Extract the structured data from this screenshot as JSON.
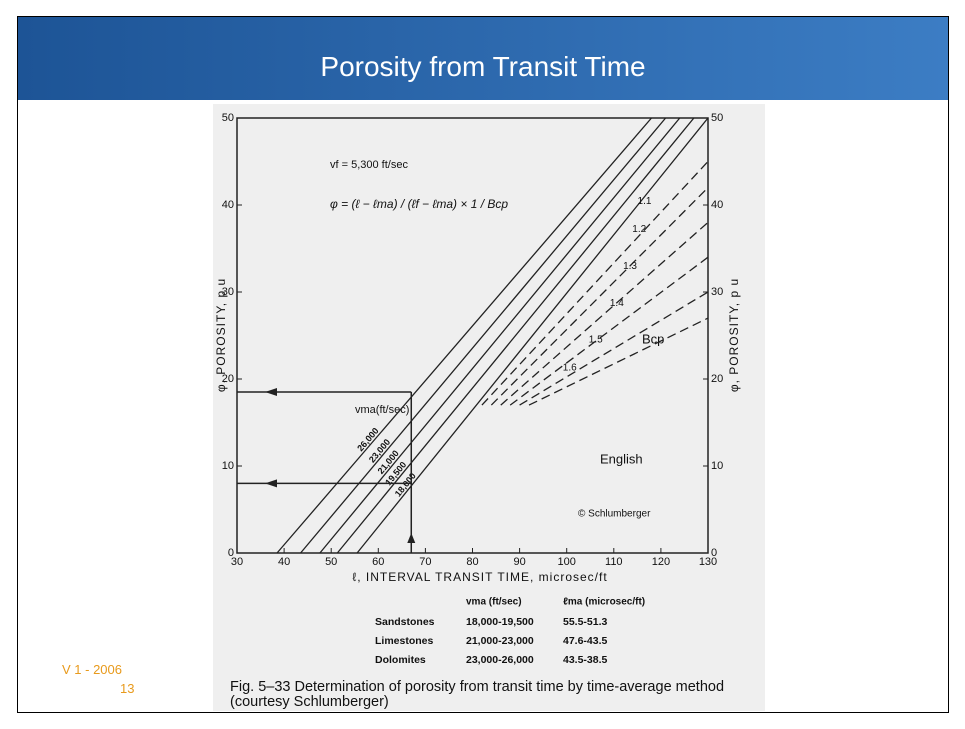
{
  "slide": {
    "title": "Porosity from Transit Time",
    "version": "V 1 - 2006",
    "page_number": "13",
    "caption": "Fig. 5–33 Determination of porosity from transit time by time-average method (courtesy Schlumberger)"
  },
  "chart_data": {
    "type": "line",
    "xlabel": "ℓ, INTERVAL TRANSIT TIME, microsec/ft",
    "ylabel": "φ, POROSITY, p u",
    "fluid_velocity": "vf = 5,300 ft/sec",
    "formula": "φ = (ℓ − ℓma) / (ℓf − ℓma) × 1 / Bcp",
    "matrix_label": "vma(ft/sec)",
    "bcp_label": "Bcp",
    "unit_label": "English",
    "copyright": "© Schlumberger",
    "xlim": [
      30,
      130
    ],
    "xticks": [
      30,
      40,
      50,
      60,
      70,
      80,
      90,
      100,
      110,
      120,
      130
    ],
    "ylim": [
      0,
      50
    ],
    "yticks": [
      0,
      10,
      20,
      30,
      40,
      50
    ],
    "series": [
      {
        "name": "26,000",
        "color": "#222",
        "dashed": false,
        "x": [
          38.5,
          118
        ],
        "values": [
          0,
          50
        ]
      },
      {
        "name": "23,000",
        "color": "#222",
        "dashed": false,
        "x": [
          43.5,
          121
        ],
        "values": [
          0,
          50
        ]
      },
      {
        "name": "21,000",
        "color": "#222",
        "dashed": false,
        "x": [
          47.6,
          124
        ],
        "values": [
          0,
          50
        ]
      },
      {
        "name": "19,500",
        "color": "#222",
        "dashed": false,
        "x": [
          51.3,
          127
        ],
        "values": [
          0,
          50
        ]
      },
      {
        "name": "18,000",
        "color": "#222",
        "dashed": false,
        "x": [
          55.5,
          130
        ],
        "values": [
          0,
          50
        ]
      },
      {
        "name": "1.1",
        "color": "#222",
        "dashed": true,
        "x": [
          82,
          130
        ],
        "values": [
          17,
          45
        ]
      },
      {
        "name": "1.2",
        "color": "#222",
        "dashed": true,
        "x": [
          84,
          130
        ],
        "values": [
          17,
          42
        ]
      },
      {
        "name": "1.3",
        "color": "#222",
        "dashed": true,
        "x": [
          86,
          130
        ],
        "values": [
          17,
          38
        ]
      },
      {
        "name": "1.4",
        "color": "#222",
        "dashed": true,
        "x": [
          88,
          130
        ],
        "values": [
          17,
          34
        ]
      },
      {
        "name": "1.5",
        "color": "#222",
        "dashed": true,
        "x": [
          90,
          130
        ],
        "values": [
          17,
          30
        ]
      },
      {
        "name": "1.6",
        "color": "#222",
        "dashed": true,
        "x": [
          92,
          130
        ],
        "values": [
          17,
          27
        ]
      }
    ],
    "example": {
      "transit_time": 67,
      "porosities": [
        18.5,
        8
      ]
    }
  },
  "table": {
    "headers": [
      "vma (ft/sec)",
      "ℓma (microsec/ft)"
    ],
    "rows": [
      [
        "Sandstones",
        "18,000-19,500",
        "55.5-51.3"
      ],
      [
        "Limestones",
        "21,000-23,000",
        "47.6-43.5"
      ],
      [
        "Dolomites",
        "23,000-26,000",
        "43.5-38.5"
      ]
    ]
  }
}
